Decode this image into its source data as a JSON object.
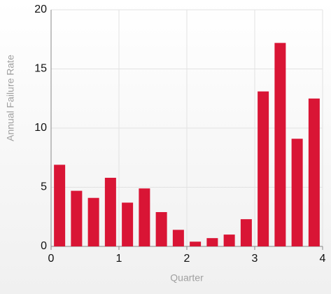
{
  "chart_data": {
    "type": "bar",
    "x_label": "Quarter",
    "y_label": "Annual Failure Rate",
    "x": [
      0.125,
      0.375,
      0.625,
      0.875,
      1.125,
      1.375,
      1.625,
      1.875,
      2.125,
      2.375,
      2.625,
      2.875,
      3.125,
      3.375,
      3.625,
      3.875
    ],
    "values": [
      6.9,
      4.7,
      4.1,
      5.8,
      3.7,
      4.9,
      2.9,
      1.4,
      0.4,
      0.7,
      1.0,
      2.3,
      13.1,
      17.2,
      9.1,
      12.5
    ],
    "color": "#d91535",
    "xlim": [
      0,
      4
    ],
    "xticks": [
      0,
      1,
      2,
      3,
      4
    ],
    "ylim": [
      0,
      20
    ],
    "yticks": [
      0,
      5,
      10,
      15,
      20
    ],
    "grid": true
  }
}
